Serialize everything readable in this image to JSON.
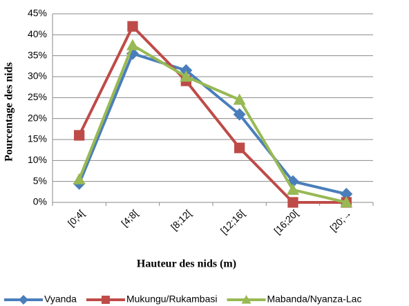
{
  "chart_data": {
    "type": "line",
    "xlabel": "Hauteur des nids (m)",
    "ylabel": "Pourcentage des nids",
    "categories": [
      "[0;4[",
      "[4;8[",
      "[8;12[",
      "[12;16[",
      "[16;20[",
      "[20;→"
    ],
    "series": [
      {
        "name": "Vyanda",
        "color": "#4a7ebb",
        "marker": "diamond",
        "values": [
          4.5,
          35.5,
          31.5,
          21,
          5,
          2
        ]
      },
      {
        "name": "Mukungu/Rukambasi",
        "color": "#be4b48",
        "marker": "square",
        "values": [
          16,
          42,
          29,
          13,
          0,
          0
        ]
      },
      {
        "name": "Mabanda/Nyanza-Lac",
        "color": "#98b954",
        "marker": "triangle",
        "values": [
          5.5,
          37.5,
          30,
          24.5,
          3,
          0
        ]
      }
    ],
    "ylim": [
      0,
      45
    ],
    "yticks": [
      {
        "value": 0,
        "label": "0%"
      },
      {
        "value": 5,
        "label": "5%"
      },
      {
        "value": 10,
        "label": "10%"
      },
      {
        "value": 15,
        "label": "15%"
      },
      {
        "value": 20,
        "label": "20%"
      },
      {
        "value": 25,
        "label": "25%"
      },
      {
        "value": 30,
        "label": "30%"
      },
      {
        "value": 35,
        "label": "35%"
      },
      {
        "value": 40,
        "label": "40%"
      },
      {
        "value": 45,
        "label": "45%"
      }
    ],
    "grid": true,
    "legend": "bottom"
  }
}
